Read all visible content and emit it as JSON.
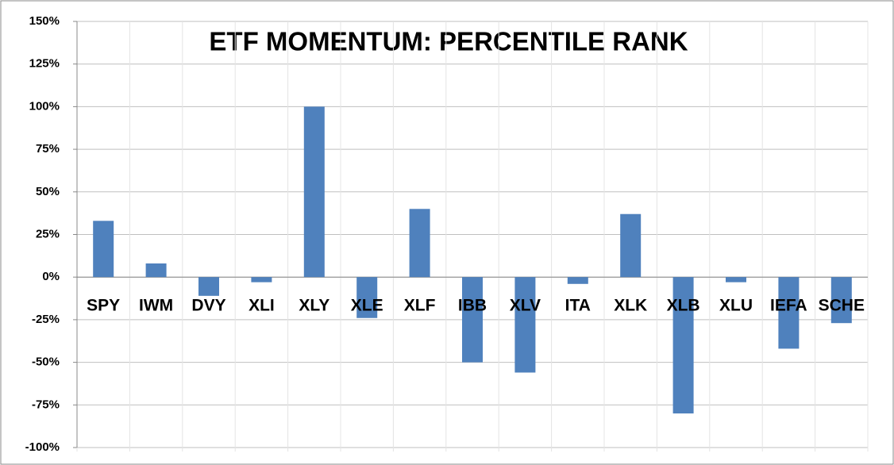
{
  "chart_data": {
    "type": "bar",
    "title": "ETF MOMENTUM: PERCENTILE RANK",
    "categories": [
      "SPY",
      "IWM",
      "DVY",
      "XLI",
      "XLY",
      "XLE",
      "XLF",
      "IBB",
      "XLV",
      "ITA",
      "XLK",
      "XLB",
      "XLU",
      "IEFA",
      "SCHE"
    ],
    "values": [
      33,
      8,
      -11,
      -3,
      100,
      -24,
      40,
      -50,
      -56,
      -4,
      37,
      -80,
      -3,
      -42,
      -27
    ],
    "color": "#4f81bd",
    "ylim": [
      -100,
      150
    ],
    "yticks": [
      {
        "value": -100,
        "label": "-100%"
      },
      {
        "value": -75,
        "label": "-75%"
      },
      {
        "value": -50,
        "label": "-50%"
      },
      {
        "value": -25,
        "label": "-25%"
      },
      {
        "value": 0,
        "label": "0%"
      },
      {
        "value": 25,
        "label": "25%"
      },
      {
        "value": 50,
        "label": "50%"
      },
      {
        "value": 75,
        "label": "75%"
      },
      {
        "value": 100,
        "label": "100%"
      },
      {
        "value": 125,
        "label": "125%"
      },
      {
        "value": 150,
        "label": "150%"
      }
    ],
    "grid": true
  }
}
